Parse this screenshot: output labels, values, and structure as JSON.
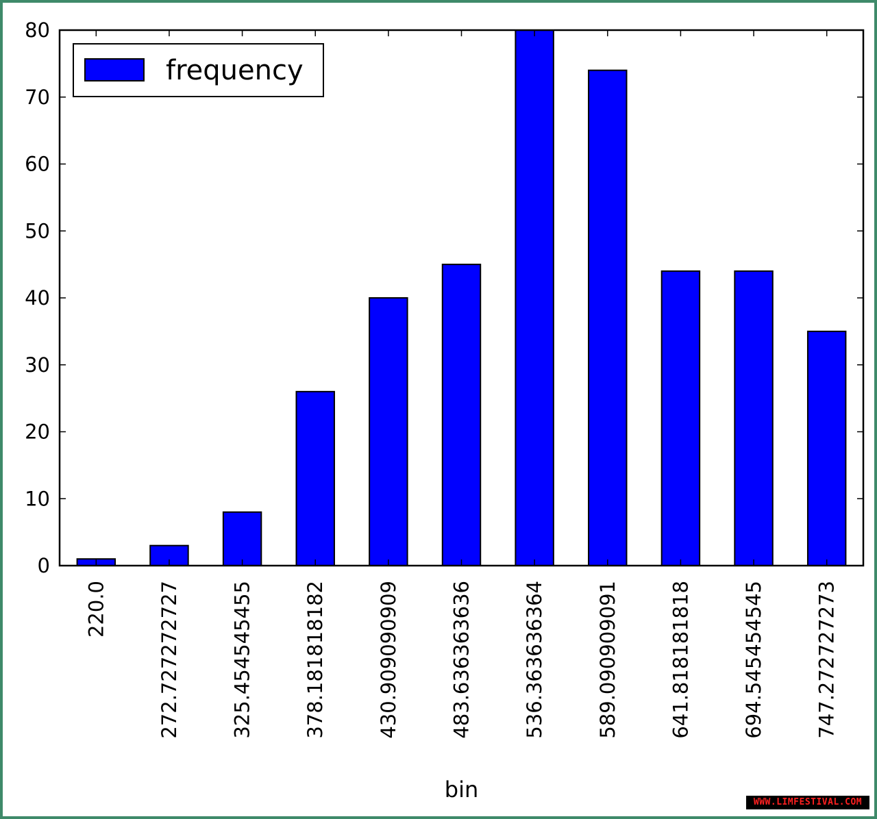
{
  "chart_data": {
    "type": "bar",
    "categories": [
      "220.0",
      "272.727272727",
      "325.454545455",
      "378.181818182",
      "430.909090909",
      "483.636363636",
      "536.363636364",
      "589.090909091",
      "641.818181818",
      "694.545454545",
      "747.272727273"
    ],
    "series": [
      {
        "name": "frequency",
        "values": [
          1,
          3,
          8,
          26,
          40,
          45,
          80,
          74,
          44,
          44,
          35
        ]
      }
    ],
    "xlabel": "bin",
    "ylabel": "",
    "ylim": [
      0,
      80
    ],
    "yticks": [
      0,
      10,
      20,
      30,
      40,
      50,
      60,
      70,
      80
    ],
    "legend_position": "top-left",
    "grid": false,
    "bar_color": "#0000ff",
    "edge_color": "#000000"
  },
  "watermark": {
    "text": "WWW.LIMFESTIVAL.COM",
    "color": "#ff2020"
  }
}
